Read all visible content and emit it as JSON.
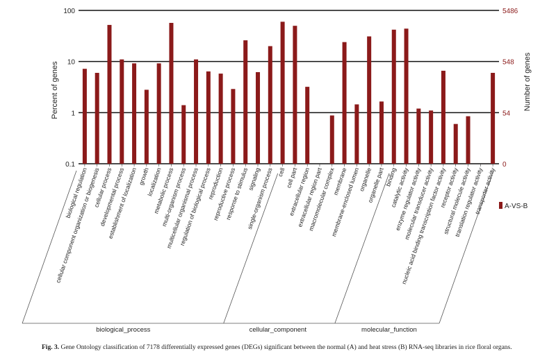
{
  "chart_data": {
    "type": "bar",
    "scale": "log",
    "ylabel_left": "Percent of genes",
    "ylabel_right": "Number of genes",
    "left_ticks": [
      "100",
      "10",
      "1",
      "0.1"
    ],
    "right_ticks": [
      "5486",
      "548",
      "54",
      "0"
    ],
    "ylim": [
      0.1,
      100
    ],
    "grid": true,
    "legend_position": "right",
    "series": [
      {
        "name": "A-VS-B",
        "color": "#8b1a1a",
        "categories": [
          "biological regulation",
          "cellular component organization or biogenesis",
          "cellular process",
          "developmental process",
          "establishment of localization",
          "growth",
          "localization",
          "metabolic process",
          "multi-organism process",
          "multicellular organismal process",
          "regulation of biological process",
          "reproduction",
          "reproductive process",
          "response to stimulus",
          "signaling",
          "single-organism process",
          "cell",
          "cell part",
          "extracellular region",
          "extracellular region part",
          "macromolecular complex",
          "membrane",
          "membrane-enclosed lumen",
          "organelle",
          "organelle part",
          "binding",
          "catalytic activity",
          "enzyme regulator activity",
          "molecular transducer activity",
          "nucleic acid binding transcription factor activity",
          "receptor activity",
          "structural molecule activity",
          "translation regulator activity",
          "transporter activity"
        ],
        "values": [
          7.2,
          6.0,
          52,
          11,
          9.2,
          2.8,
          9.2,
          57,
          1.4,
          11,
          6.4,
          5.8,
          2.9,
          26,
          6.2,
          20,
          60,
          50,
          3.2,
          0.1,
          0.88,
          24,
          1.45,
          31,
          1.65,
          42,
          44,
          1.2,
          1.1,
          6.6,
          0.6,
          0.85,
          0.1,
          6.0
        ]
      }
    ],
    "groups": [
      {
        "label": "biological_process",
        "start": 0,
        "end": 15
      },
      {
        "label": "cellular_component",
        "start": 16,
        "end": 24
      },
      {
        "label": "molecular_function",
        "start": 25,
        "end": 33
      }
    ]
  },
  "caption": {
    "label": "Fig. 3.",
    "text": " Gene Ontology classification of 7178 differentially expressed genes (DEGs) significant between the normal (A) and heat stress (B) RNA-seq libraries in rice floral organs."
  }
}
